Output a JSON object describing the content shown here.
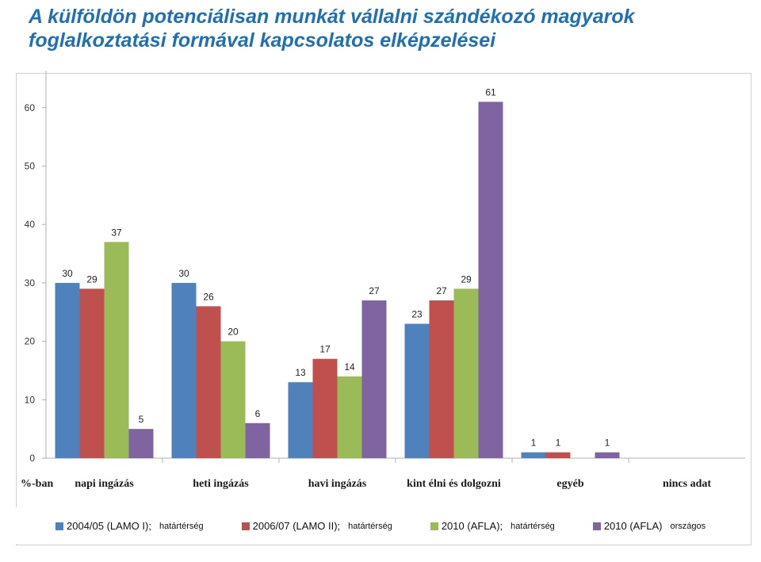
{
  "title": {
    "line1": "A külföldön potenciálisan munkát vállalni szándékozó magyarok",
    "line2": "foglalkoztatási formával kapcsolatos elképzelései"
  },
  "chart_data": {
    "type": "bar",
    "unit_label": "%-ban",
    "categories": [
      "napi ingázás",
      "heti ingázás",
      "havi ingázás",
      "kint élni és dolgozni",
      "egyéb",
      "nincs adat"
    ],
    "y_ticks": [
      0,
      10,
      20,
      30,
      40,
      50,
      60
    ],
    "ylim": [
      0,
      65
    ],
    "grid": false,
    "legend_position": "bottom",
    "series": [
      {
        "name": "2004/05 (LAMO I);",
        "sub": "határtérség",
        "color": "#4f81bd",
        "values": [
          30,
          30,
          13,
          23,
          1,
          null
        ]
      },
      {
        "name": "2006/07 (LAMO II);",
        "sub": "határtérség",
        "color": "#c0504d",
        "values": [
          29,
          26,
          17,
          27,
          1,
          null
        ]
      },
      {
        "name": "2010 (AFLA);",
        "sub": "határtérség",
        "color": "#9bbb59",
        "values": [
          37,
          20,
          14,
          29,
          null,
          null
        ]
      },
      {
        "name": "2010 (AFLA)",
        "sub": "országos",
        "color": "#8064a2",
        "values": [
          5,
          6,
          27,
          61,
          1,
          null
        ]
      }
    ]
  }
}
